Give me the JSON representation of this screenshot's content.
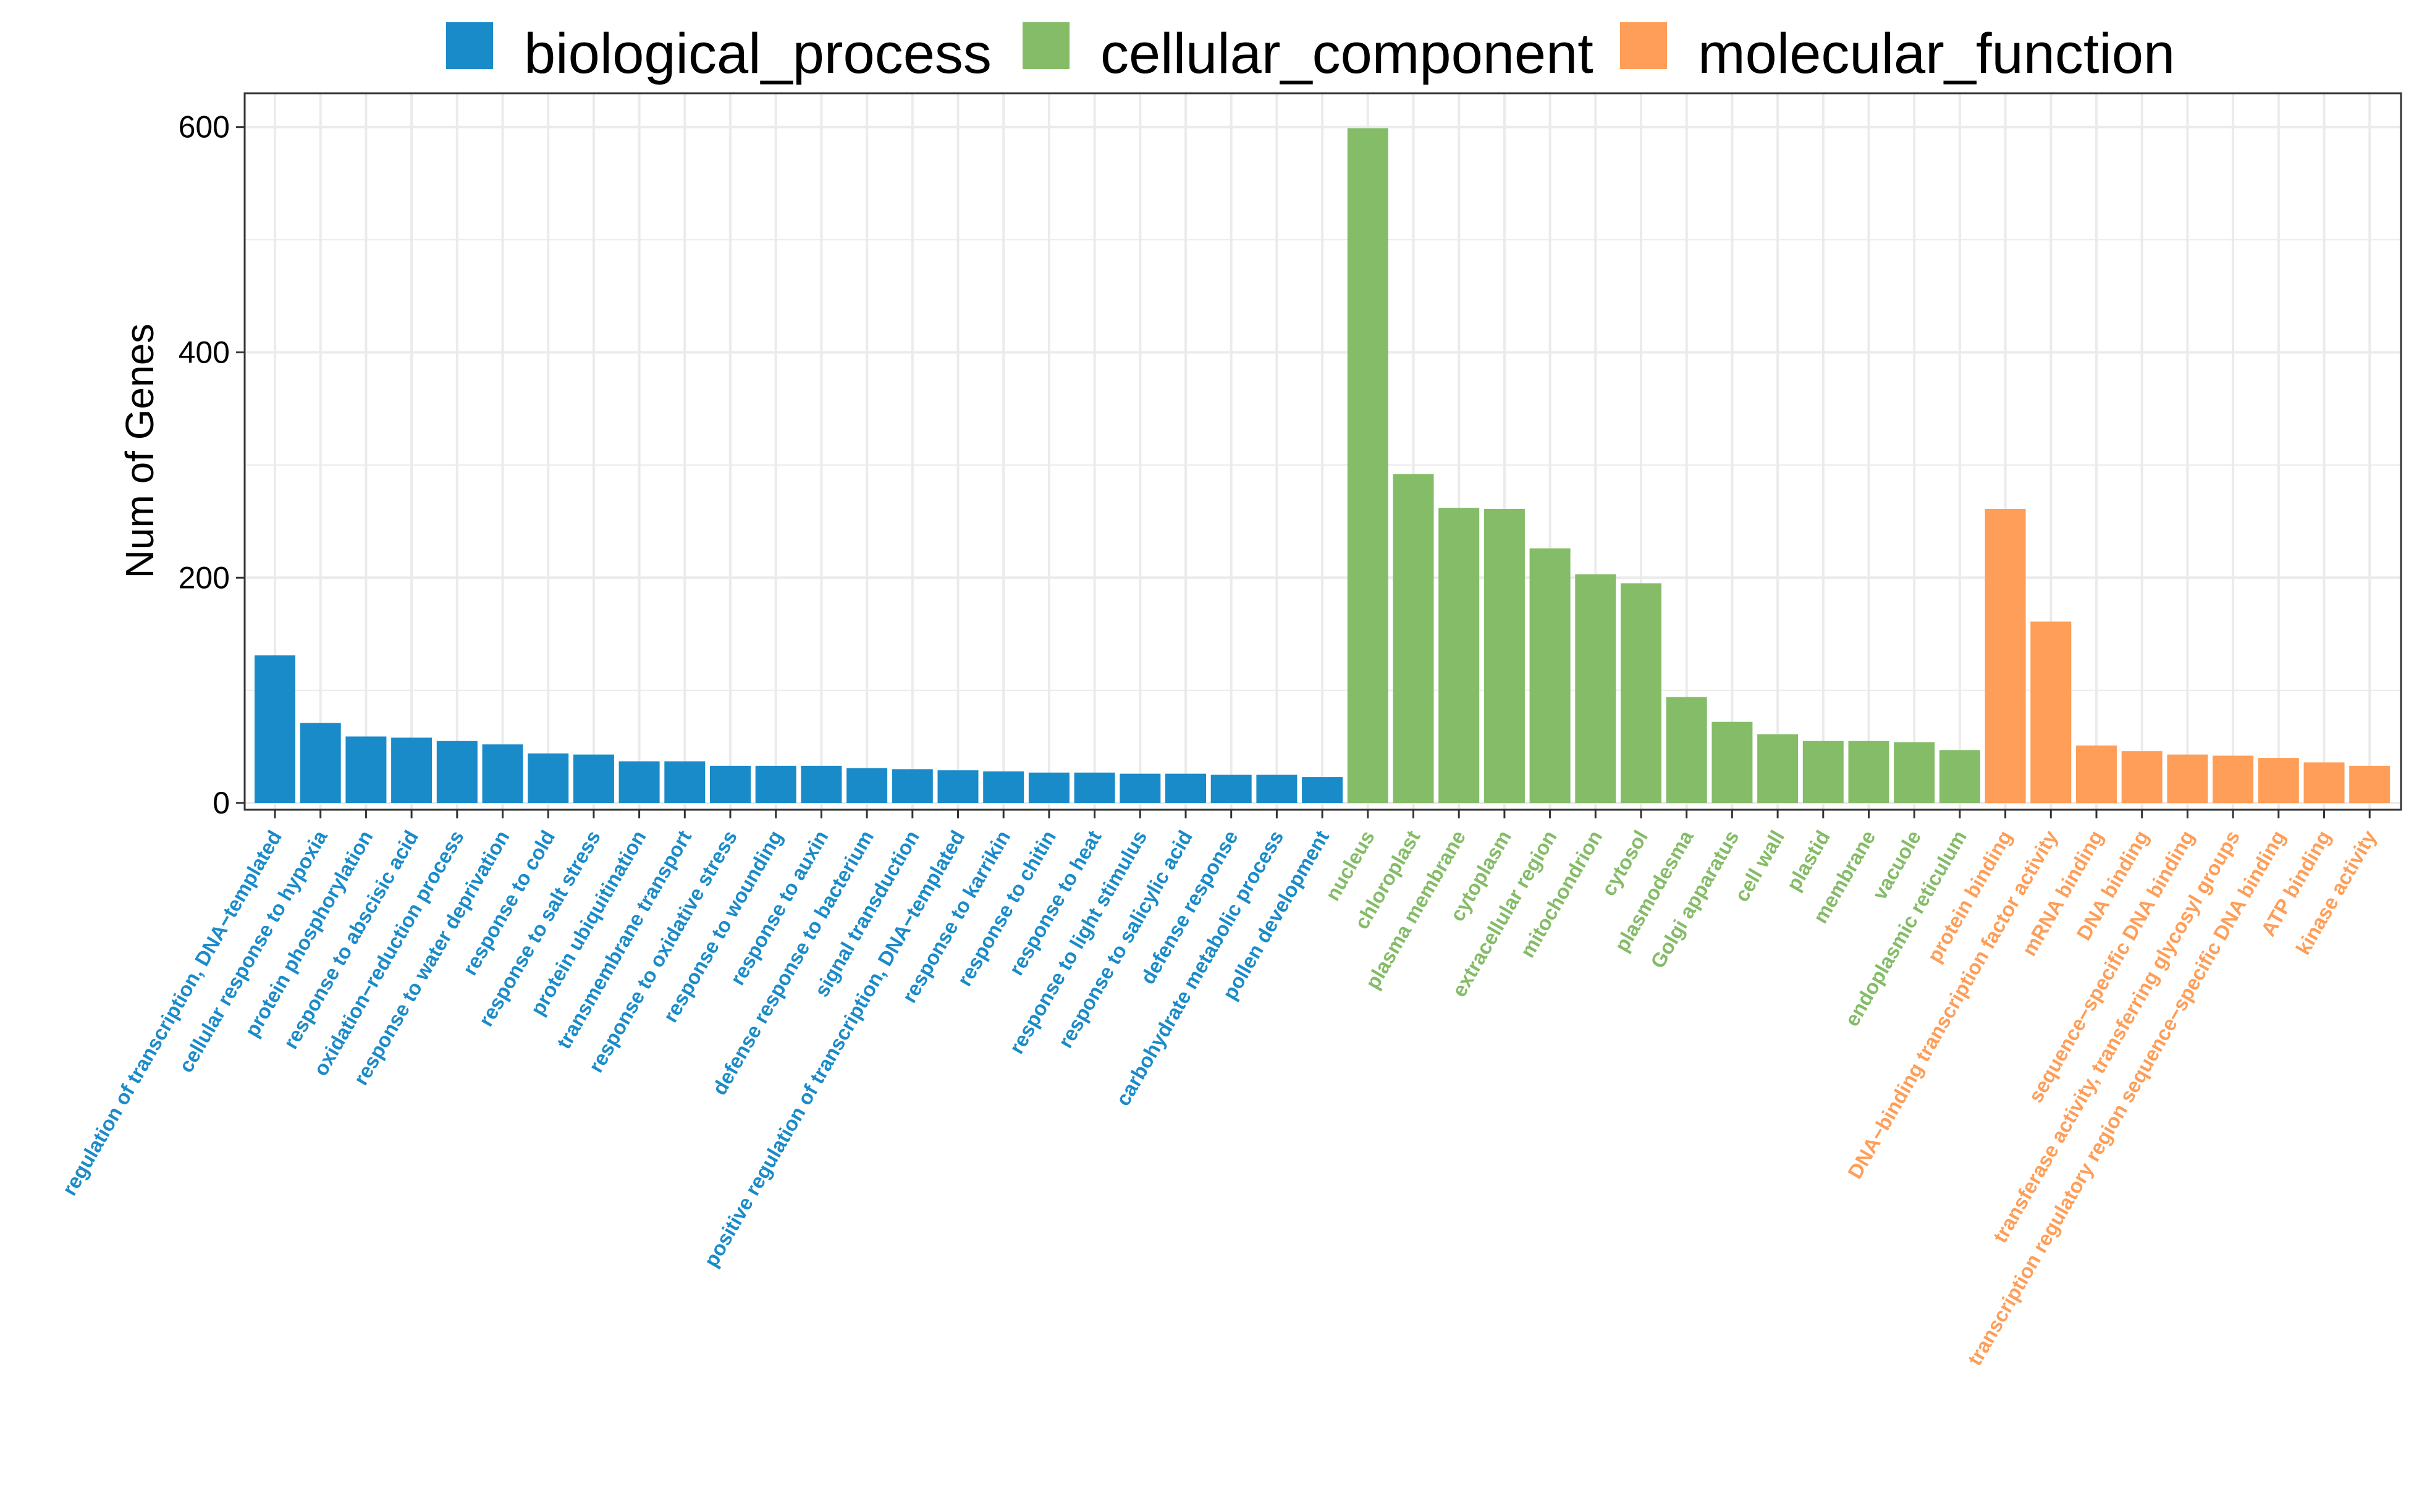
{
  "chart_data": {
    "type": "bar",
    "title": "",
    "xlabel": "",
    "ylabel": "Num of Genes",
    "ylim": [
      -6,
      630
    ],
    "yticks": [
      0,
      200,
      400,
      600
    ],
    "grid": true,
    "legend_position": "top",
    "legend": [
      {
        "name": "biological_process",
        "color": "#1a8bc9"
      },
      {
        "name": "cellular_component",
        "color": "#84bc67"
      },
      {
        "name": "molecular_function",
        "color": "#fe9e58"
      }
    ],
    "bars": [
      {
        "label": "regulation of transcription, DNA−templated",
        "value": 131,
        "group": "biological_process"
      },
      {
        "label": "cellular response to hypoxia",
        "value": 71,
        "group": "biological_process"
      },
      {
        "label": "protein phosphorylation",
        "value": 59,
        "group": "biological_process"
      },
      {
        "label": "response to abscisic acid",
        "value": 58,
        "group": "biological_process"
      },
      {
        "label": "oxidation−reduction process",
        "value": 55,
        "group": "biological_process"
      },
      {
        "label": "response to water deprivation",
        "value": 52,
        "group": "biological_process"
      },
      {
        "label": "response to cold",
        "value": 44,
        "group": "biological_process"
      },
      {
        "label": "response to salt stress",
        "value": 43,
        "group": "biological_process"
      },
      {
        "label": "protein ubiquitination",
        "value": 37,
        "group": "biological_process"
      },
      {
        "label": "transmembrane transport",
        "value": 37,
        "group": "biological_process"
      },
      {
        "label": "response to oxidative stress",
        "value": 33,
        "group": "biological_process"
      },
      {
        "label": "response to wounding",
        "value": 33,
        "group": "biological_process"
      },
      {
        "label": "response to auxin",
        "value": 33,
        "group": "biological_process"
      },
      {
        "label": "defense response to bacterium",
        "value": 31,
        "group": "biological_process"
      },
      {
        "label": "signal transduction",
        "value": 30,
        "group": "biological_process"
      },
      {
        "label": "positive regulation of transcription, DNA−templated",
        "value": 29,
        "group": "biological_process"
      },
      {
        "label": "response to karrikin",
        "value": 28,
        "group": "biological_process"
      },
      {
        "label": "response to chitin",
        "value": 27,
        "group": "biological_process"
      },
      {
        "label": "response to heat",
        "value": 27,
        "group": "biological_process"
      },
      {
        "label": "response to light stimulus",
        "value": 26,
        "group": "biological_process"
      },
      {
        "label": "response to salicylic acid",
        "value": 26,
        "group": "biological_process"
      },
      {
        "label": "defense response",
        "value": 25,
        "group": "biological_process"
      },
      {
        "label": "carbohydrate metabolic process",
        "value": 25,
        "group": "biological_process"
      },
      {
        "label": "pollen development",
        "value": 23,
        "group": "biological_process"
      },
      {
        "label": "nucleus",
        "value": 599,
        "group": "cellular_component"
      },
      {
        "label": "chloroplast",
        "value": 292,
        "group": "cellular_component"
      },
      {
        "label": "plasma membrane",
        "value": 262,
        "group": "cellular_component"
      },
      {
        "label": "cytoplasm",
        "value": 261,
        "group": "cellular_component"
      },
      {
        "label": "extracellular region",
        "value": 226,
        "group": "cellular_component"
      },
      {
        "label": "mitochondrion",
        "value": 203,
        "group": "cellular_component"
      },
      {
        "label": "cytosol",
        "value": 195,
        "group": "cellular_component"
      },
      {
        "label": "plasmodesma",
        "value": 94,
        "group": "cellular_component"
      },
      {
        "label": "Golgi apparatus",
        "value": 72,
        "group": "cellular_component"
      },
      {
        "label": "cell wall",
        "value": 61,
        "group": "cellular_component"
      },
      {
        "label": "plastid",
        "value": 55,
        "group": "cellular_component"
      },
      {
        "label": "membrane",
        "value": 55,
        "group": "cellular_component"
      },
      {
        "label": "vacuole",
        "value": 54,
        "group": "cellular_component"
      },
      {
        "label": "endoplasmic reticulum",
        "value": 47,
        "group": "cellular_component"
      },
      {
        "label": "protein binding",
        "value": 261,
        "group": "molecular_function"
      },
      {
        "label": "DNA−binding transcription factor activity",
        "value": 161,
        "group": "molecular_function"
      },
      {
        "label": "mRNA binding",
        "value": 51,
        "group": "molecular_function"
      },
      {
        "label": "DNA binding",
        "value": 46,
        "group": "molecular_function"
      },
      {
        "label": "sequence−specific DNA binding",
        "value": 43,
        "group": "molecular_function"
      },
      {
        "label": "transferase activity, transferring glycosyl groups",
        "value": 42,
        "group": "molecular_function"
      },
      {
        "label": "transcription regulatory region sequence−specific DNA binding",
        "value": 40,
        "group": "molecular_function"
      },
      {
        "label": "ATP binding",
        "value": 36,
        "group": "molecular_function"
      },
      {
        "label": "kinase activity",
        "value": 33,
        "group": "molecular_function"
      }
    ]
  }
}
